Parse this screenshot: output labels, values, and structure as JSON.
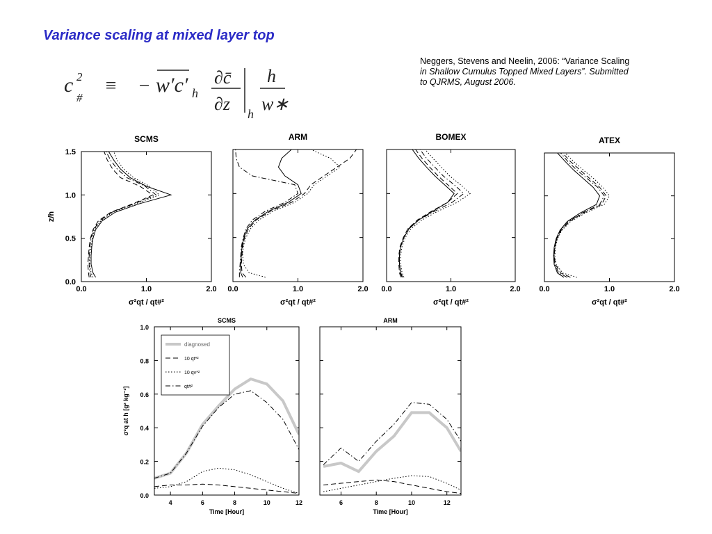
{
  "title": "Variance scaling at mixed layer top",
  "equation": {
    "lhs": "c",
    "lhs_sup": "2",
    "lhs_sub": "#",
    "equiv": "≡",
    "minus": "−",
    "flux": "w′c′",
    "flux_sub": "h",
    "num": "∂c̄",
    "den": "∂z",
    "eval_sub": "h",
    "num2": "h",
    "den2": "w∗"
  },
  "citation": [
    "Neggers, Stevens and Neelin, 2006:  “Variance Scaling",
    "in Shallow Cumulus Topped Mixed Layers”.  Submitted",
    "to QJRMS, August 2006."
  ],
  "chart_data": [
    {
      "type": "line",
      "title": "SCMS",
      "xlabel": "σ²qt / qt#²",
      "ylabel": "z/h",
      "ytick_labels": true,
      "xlim": [
        0,
        2
      ],
      "ylim": [
        0,
        1.5
      ],
      "xticks": [
        {
          "value": 0,
          "label": "0.0"
        },
        {
          "value": 1,
          "label": "1.0"
        },
        {
          "value": 2,
          "label": "2.0"
        }
      ],
      "yticks": [
        {
          "value": 0,
          "label": "0.0"
        },
        0.5,
        {
          "value": 1,
          "label": "1.0"
        },
        1.5
      ],
      "y": [
        0.05,
        0.1,
        0.2,
        0.3,
        0.4,
        0.5,
        0.6,
        0.7,
        0.8,
        0.9,
        1.0,
        1.1,
        1.2,
        1.3,
        1.4,
        1.5
      ],
      "series": [
        {
          "color": "#000000",
          "dash": "solid",
          "x": [
            0.22,
            0.18,
            0.15,
            0.15,
            0.16,
            0.18,
            0.22,
            0.32,
            0.52,
            0.9,
            1.38,
            1.0,
            0.75,
            0.6,
            0.5,
            0.42
          ]
        },
        {
          "color": "#000000",
          "dash": "dashed",
          "x": [
            0.12,
            0.11,
            0.1,
            0.11,
            0.12,
            0.14,
            0.18,
            0.26,
            0.45,
            0.8,
            1.1,
            0.9,
            0.6,
            0.48,
            0.4,
            0.35
          ]
        },
        {
          "color": "#000000",
          "dash": "dotted",
          "x": [
            0.18,
            0.15,
            0.13,
            0.13,
            0.15,
            0.17,
            0.2,
            0.3,
            0.48,
            0.85,
            1.2,
            1.05,
            0.8,
            0.65,
            0.55,
            0.5
          ]
        },
        {
          "color": "#000000",
          "dash": "dashdot",
          "x": [
            0.15,
            0.13,
            0.12,
            0.12,
            0.13,
            0.15,
            0.19,
            0.28,
            0.47,
            0.82,
            1.15,
            0.98,
            0.7,
            0.55,
            0.45,
            0.38
          ]
        }
      ]
    },
    {
      "type": "line",
      "title": "ARM",
      "xlabel": "σ²qt / qt#²",
      "ytick_labels": false,
      "xlim": [
        0,
        2
      ],
      "ylim": [
        0,
        1.5
      ],
      "xticks": [
        {
          "value": 0,
          "label": "0.0"
        },
        {
          "value": 1,
          "label": "1.0"
        },
        {
          "value": 2,
          "label": "2.0"
        }
      ],
      "yticks": [
        {
          "value": 0,
          "label": "0.0"
        },
        0.5,
        {
          "value": 1,
          "label": "1.0"
        },
        1.5
      ],
      "y": [
        0.05,
        0.1,
        0.2,
        0.3,
        0.4,
        0.5,
        0.6,
        0.7,
        0.8,
        0.9,
        1.0,
        1.1,
        1.2,
        1.3,
        1.4,
        1.5
      ],
      "series": [
        {
          "color": "#000000",
          "dash": "solid",
          "x": [
            0.15,
            0.12,
            0.12,
            0.13,
            0.14,
            0.17,
            0.22,
            0.34,
            0.55,
            0.85,
            1.05,
            1.0,
            0.8,
            0.7,
            0.75,
            0.9
          ]
        },
        {
          "color": "#000000",
          "dash": "dashed",
          "x": [
            0.2,
            0.14,
            0.13,
            0.14,
            0.15,
            0.18,
            0.24,
            0.36,
            0.58,
            0.9,
            1.1,
            1.2,
            1.4,
            1.6,
            1.8,
            1.9
          ]
        },
        {
          "color": "#000000",
          "dash": "dotted",
          "x": [
            0.5,
            0.25,
            0.16,
            0.15,
            0.16,
            0.2,
            0.27,
            0.4,
            0.62,
            0.95,
            1.15,
            1.25,
            1.45,
            1.65,
            1.5,
            1.2
          ]
        },
        {
          "color": "#000000",
          "dash": "dashdot",
          "x": [
            0.1,
            0.1,
            0.11,
            0.12,
            0.13,
            0.16,
            0.2,
            0.3,
            0.5,
            0.8,
            1.0,
            0.95,
            0.3,
            0.1,
            0.05,
            0.04
          ]
        }
      ]
    },
    {
      "type": "line",
      "title": "BOMEX",
      "xlabel": "σ²qt / qt#²",
      "ytick_labels": false,
      "xlim": [
        0,
        2
      ],
      "ylim": [
        0,
        1.5
      ],
      "xticks": [
        {
          "value": 0,
          "label": "0.0"
        },
        {
          "value": 1,
          "label": "1.0"
        },
        {
          "value": 2,
          "label": "2.0"
        }
      ],
      "yticks": [
        {
          "value": 0,
          "label": "0.0"
        },
        0.5,
        {
          "value": 1,
          "label": "1.0"
        },
        1.5
      ],
      "y": [
        0.05,
        0.1,
        0.2,
        0.3,
        0.4,
        0.5,
        0.6,
        0.7,
        0.8,
        0.9,
        1.0,
        1.1,
        1.2,
        1.3,
        1.4,
        1.5
      ],
      "series": [
        {
          "color": "#000000",
          "dash": "solid",
          "x": [
            0.25,
            0.22,
            0.2,
            0.2,
            0.22,
            0.27,
            0.35,
            0.5,
            0.72,
            0.95,
            1.05,
            0.9,
            0.75,
            0.62,
            0.5,
            0.4
          ]
        },
        {
          "color": "#000000",
          "dash": "dashed",
          "x": [
            0.22,
            0.2,
            0.19,
            0.19,
            0.21,
            0.26,
            0.33,
            0.48,
            0.7,
            0.95,
            1.1,
            0.95,
            0.8,
            0.67,
            0.55,
            0.45
          ]
        },
        {
          "color": "#000000",
          "dash": "dotted",
          "x": [
            0.27,
            0.24,
            0.22,
            0.22,
            0.24,
            0.29,
            0.38,
            0.55,
            0.8,
            1.1,
            1.3,
            1.15,
            0.98,
            0.85,
            0.72,
            0.6
          ]
        },
        {
          "color": "#000000",
          "dash": "dashdot",
          "x": [
            0.24,
            0.21,
            0.2,
            0.2,
            0.22,
            0.27,
            0.34,
            0.5,
            0.75,
            1.02,
            1.2,
            1.05,
            0.88,
            0.75,
            0.62,
            0.52
          ]
        }
      ]
    },
    {
      "type": "line",
      "title": "ATEX",
      "xlabel": "σ²qt / qt#²",
      "ytick_labels": false,
      "xlim": [
        0,
        2
      ],
      "ylim": [
        0,
        1.5
      ],
      "xticks": [
        {
          "value": 0,
          "label": "0.0"
        },
        {
          "value": 1,
          "label": "1.0"
        },
        {
          "value": 2,
          "label": "2.0"
        }
      ],
      "yticks": [
        {
          "value": 0,
          "label": "0.0"
        },
        0.5,
        {
          "value": 1,
          "label": "1.0"
        },
        1.5
      ],
      "y": [
        0.05,
        0.1,
        0.2,
        0.3,
        0.4,
        0.5,
        0.6,
        0.7,
        0.8,
        0.9,
        1.0,
        1.1,
        1.2,
        1.3,
        1.4,
        1.5
      ],
      "series": [
        {
          "color": "#000000",
          "dash": "solid",
          "x": [
            0.3,
            0.2,
            0.15,
            0.14,
            0.15,
            0.18,
            0.24,
            0.35,
            0.55,
            0.8,
            0.85,
            0.75,
            0.6,
            0.45,
            0.32,
            0.2
          ]
        },
        {
          "color": "#000000",
          "dash": "dashed",
          "x": [
            0.4,
            0.25,
            0.17,
            0.15,
            0.16,
            0.19,
            0.26,
            0.38,
            0.6,
            0.88,
            0.95,
            0.85,
            0.7,
            0.55,
            0.4,
            0.28
          ]
        },
        {
          "color": "#000000",
          "dash": "dotted",
          "x": [
            0.5,
            0.28,
            0.18,
            0.16,
            0.17,
            0.2,
            0.27,
            0.4,
            0.63,
            0.92,
            1.0,
            0.9,
            0.76,
            0.6,
            0.45,
            0.32
          ]
        },
        {
          "color": "#000000",
          "dash": "dashdot",
          "x": [
            0.35,
            0.22,
            0.16,
            0.15,
            0.16,
            0.19,
            0.25,
            0.37,
            0.58,
            0.85,
            0.92,
            0.82,
            0.66,
            0.5,
            0.36,
            0.25
          ]
        }
      ]
    },
    {
      "type": "line",
      "title": "SCMS",
      "xlabel": "Time [Hour]",
      "ylabel": "σ²q at h  [g² kg⁻²]",
      "ytick_labels": true,
      "legend": "upper left",
      "xlim": [
        3,
        12
      ],
      "ylim": [
        0,
        1
      ],
      "xticks": [
        4,
        6,
        8,
        10,
        12
      ],
      "yticks": [
        {
          "value": 0,
          "label": "0.0"
        },
        0.2,
        0.4,
        0.6,
        0.8,
        {
          "value": 1,
          "label": "1.0"
        }
      ],
      "x": [
        3,
        4,
        5,
        6,
        7,
        8,
        9,
        10,
        11,
        12
      ],
      "series": [
        {
          "name": "diagnosed",
          "color": "#c8c8c8",
          "dash": "solid",
          "width": 4,
          "values": [
            0.1,
            0.13,
            0.25,
            0.42,
            0.53,
            0.63,
            0.69,
            0.66,
            0.56,
            0.36
          ]
        },
        {
          "name": "10 qt*²",
          "color": "#000000",
          "dash": "dashed",
          "values": [
            0.05,
            0.06,
            0.06,
            0.065,
            0.06,
            0.05,
            0.04,
            0.03,
            0.02,
            0.01
          ]
        },
        {
          "name": "10 qv*²",
          "color": "#000000",
          "dash": "dotted",
          "values": [
            0.04,
            0.05,
            0.08,
            0.14,
            0.16,
            0.15,
            0.12,
            0.08,
            0.04,
            0.01
          ]
        },
        {
          "name": "qt#²",
          "color": "#000000",
          "dash": "dashdot",
          "values": [
            0.1,
            0.13,
            0.25,
            0.41,
            0.52,
            0.6,
            0.62,
            0.55,
            0.45,
            0.27
          ]
        }
      ]
    },
    {
      "type": "line",
      "title": "ARM",
      "xlabel": "Time [Hour]",
      "ytick_labels": false,
      "xlim": [
        4.8,
        12.8
      ],
      "ylim": [
        0,
        1
      ],
      "xticks": [
        6,
        8,
        10,
        12
      ],
      "yticks": [
        {
          "value": 0,
          "label": "0.0"
        },
        0.2,
        0.4,
        0.6,
        0.8,
        {
          "value": 1,
          "label": "1.0"
        }
      ],
      "x": [
        5,
        6,
        7,
        8,
        9,
        10,
        11,
        12,
        12.8
      ],
      "series": [
        {
          "color": "#c8c8c8",
          "dash": "solid",
          "width": 4,
          "values": [
            0.17,
            0.19,
            0.14,
            0.26,
            0.35,
            0.49,
            0.49,
            0.4,
            0.26
          ]
        },
        {
          "color": "#000000",
          "dash": "dashed",
          "values": [
            0.06,
            0.07,
            0.08,
            0.09,
            0.08,
            0.06,
            0.04,
            0.02,
            0.01
          ]
        },
        {
          "color": "#000000",
          "dash": "dotted",
          "values": [
            0.02,
            0.04,
            0.06,
            0.08,
            0.1,
            0.115,
            0.11,
            0.07,
            0.03
          ]
        },
        {
          "color": "#000000",
          "dash": "dashdot",
          "values": [
            0.18,
            0.28,
            0.2,
            0.32,
            0.42,
            0.55,
            0.54,
            0.45,
            0.32
          ]
        }
      ]
    }
  ]
}
